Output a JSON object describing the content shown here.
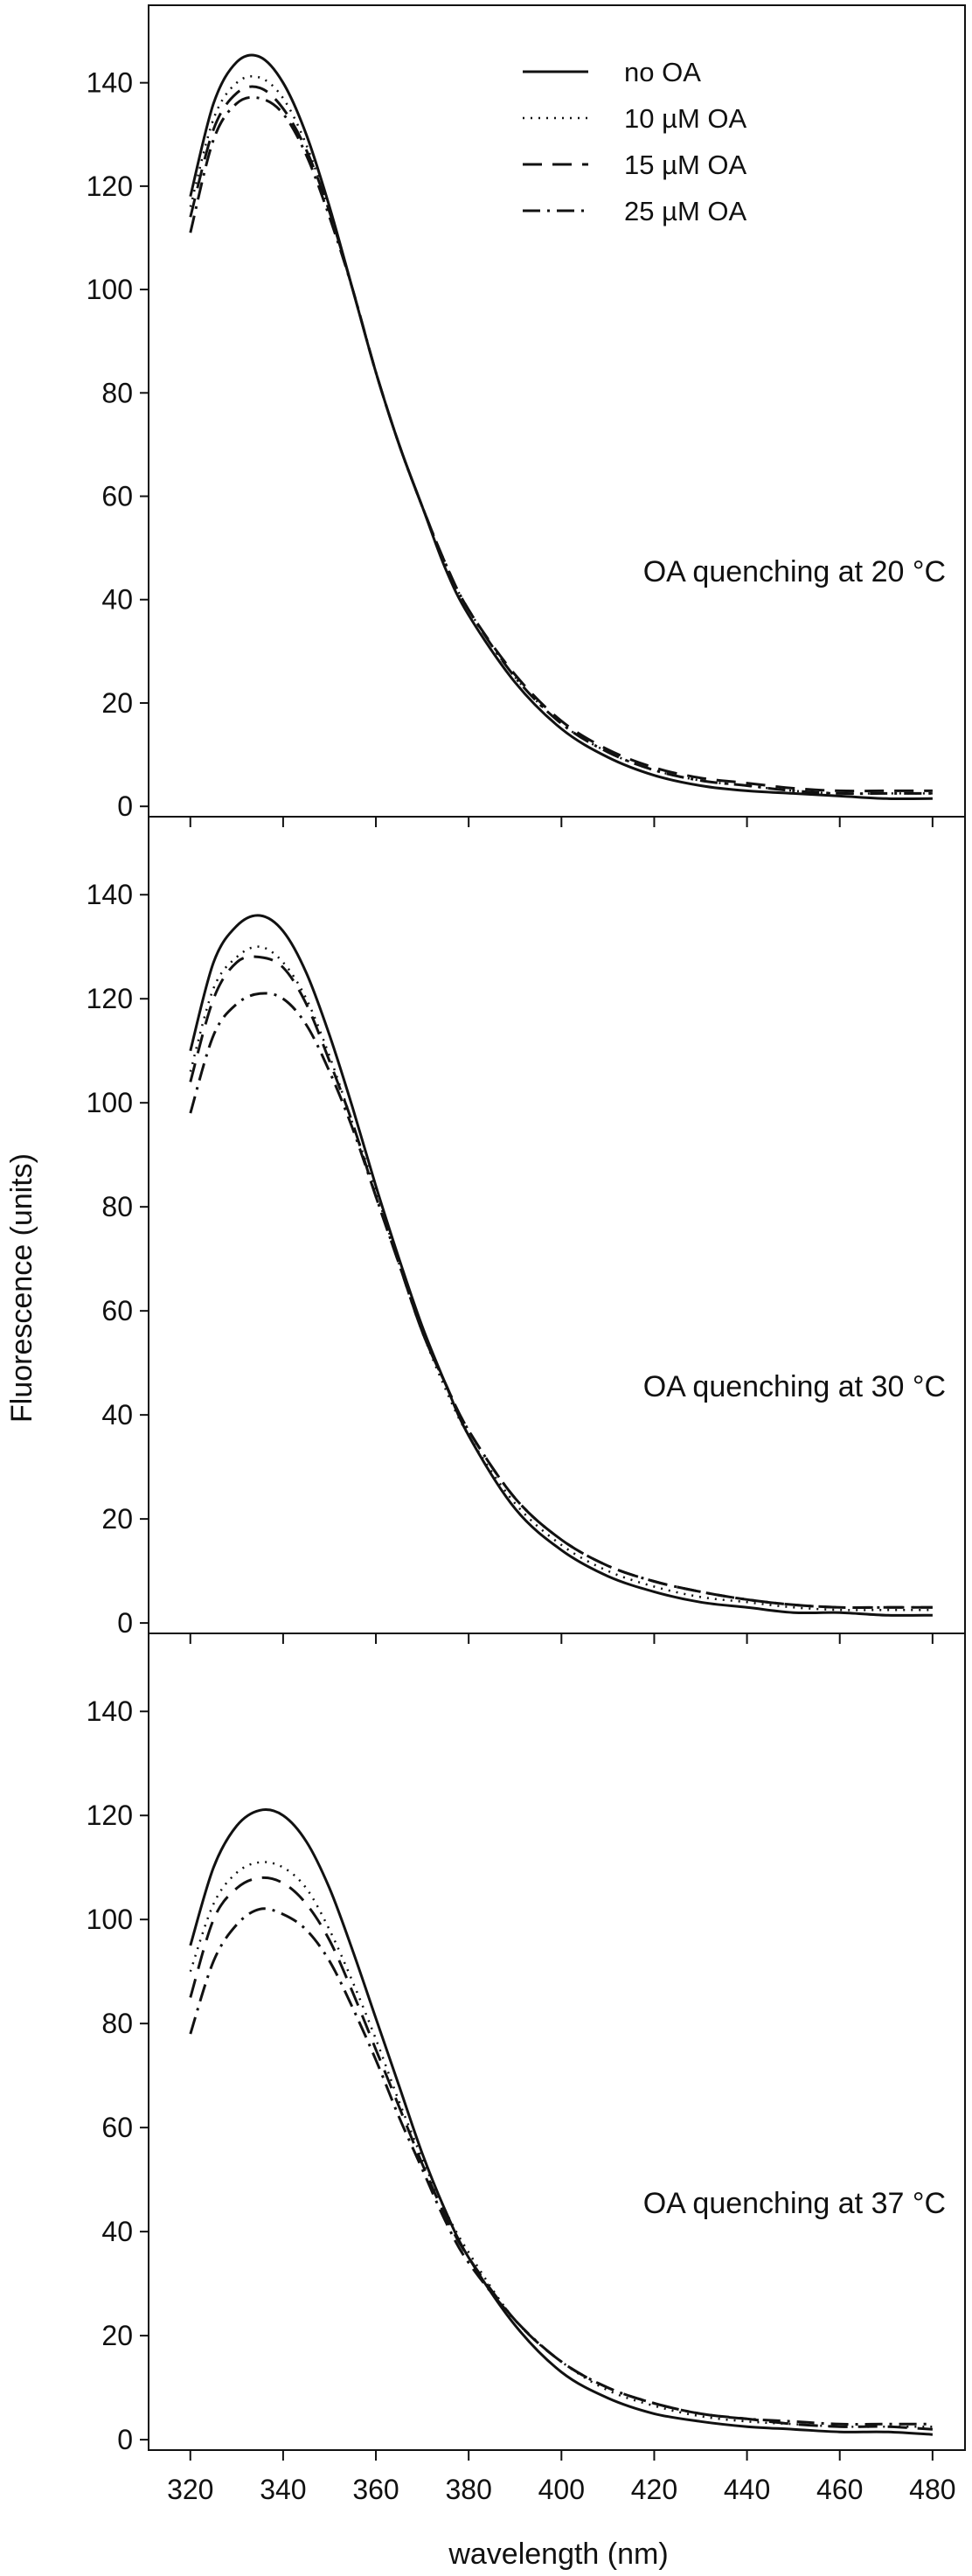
{
  "chart_data": [
    {
      "type": "line",
      "annotation": "OA quenching at 20 °C",
      "ylim": [
        -2,
        155
      ],
      "xlim": [
        311,
        487
      ],
      "yticks": [
        0,
        20,
        40,
        60,
        80,
        100,
        120,
        140
      ],
      "legend_placement": "top-center",
      "legend": [
        "no OA",
        "10 µM OA",
        "15 µM OA",
        "25 µM OA"
      ],
      "series": [
        {
          "name": "no OA",
          "style": "solid",
          "x": [
            320,
            325,
            330,
            335,
            340,
            345,
            350,
            355,
            360,
            365,
            370,
            375,
            380,
            390,
            400,
            410,
            420,
            430,
            440,
            450,
            460,
            470,
            480
          ],
          "y": [
            118,
            136,
            144,
            145,
            140,
            130,
            116,
            100,
            84,
            70,
            58,
            46,
            37,
            24,
            15,
            9.5,
            6,
            4,
            3,
            2.5,
            2,
            1.5,
            1.5
          ]
        },
        {
          "name": "10 µM OA",
          "style": "dotted",
          "x": [
            320,
            325,
            330,
            335,
            340,
            345,
            350,
            355,
            360,
            365,
            370,
            375,
            380,
            390,
            400,
            410,
            420,
            430,
            440,
            450,
            460,
            470,
            480
          ],
          "y": [
            116,
            133,
            140,
            141,
            137,
            128,
            115,
            100,
            84,
            70,
            58,
            47,
            38,
            25,
            16,
            10.5,
            7,
            5,
            4,
            3,
            2.5,
            2.5,
            2.5
          ]
        },
        {
          "name": "15 µM OA",
          "style": "dashed",
          "x": [
            320,
            325,
            330,
            335,
            340,
            345,
            350,
            355,
            360,
            365,
            370,
            375,
            380,
            390,
            400,
            410,
            420,
            430,
            440,
            450,
            460,
            470,
            480
          ],
          "y": [
            114,
            131,
            138,
            139,
            135,
            127,
            115,
            100,
            84,
            70,
            58,
            47,
            38,
            25.5,
            16.5,
            11,
            7.5,
            5.5,
            4.5,
            3.5,
            3,
            3,
            3
          ]
        },
        {
          "name": "25 µM OA",
          "style": "dashdot",
          "x": [
            320,
            325,
            330,
            335,
            340,
            345,
            350,
            355,
            360,
            365,
            370,
            375,
            380,
            390,
            400,
            410,
            420,
            430,
            440,
            450,
            460,
            470,
            480
          ],
          "y": [
            111,
            129,
            136,
            137,
            134,
            126,
            114,
            100,
            84,
            70,
            58,
            47,
            38,
            25,
            16,
            10.5,
            7,
            5,
            4,
            3,
            2.5,
            2.5,
            2.5
          ]
        }
      ]
    },
    {
      "type": "line",
      "annotation": "OA quenching at 30 °C",
      "ylim": [
        -2,
        155
      ],
      "xlim": [
        311,
        487
      ],
      "yticks": [
        0,
        20,
        40,
        60,
        80,
        100,
        120,
        140
      ],
      "series": [
        {
          "name": "no OA",
          "style": "solid",
          "x": [
            320,
            325,
            330,
            335,
            340,
            345,
            350,
            355,
            360,
            365,
            370,
            375,
            380,
            390,
            400,
            410,
            420,
            430,
            440,
            450,
            460,
            470,
            480
          ],
          "y": [
            110,
            127,
            134,
            136,
            133,
            125,
            113,
            99,
            84,
            70,
            57,
            46,
            36,
            22,
            14,
            9,
            6,
            4,
            3,
            2,
            2,
            1.5,
            1.5
          ]
        },
        {
          "name": "10 µM OA",
          "style": "dotted",
          "x": [
            320,
            325,
            330,
            335,
            340,
            345,
            350,
            355,
            360,
            365,
            370,
            375,
            380,
            390,
            400,
            410,
            420,
            430,
            440,
            450,
            460,
            470,
            480
          ],
          "y": [
            106,
            122,
            128,
            130,
            127,
            120,
            109,
            96,
            83,
            69,
            56,
            45,
            36,
            23,
            15,
            10,
            7,
            5,
            4,
            3,
            2.5,
            2.5,
            2.5
          ]
        },
        {
          "name": "15 µM OA",
          "style": "dashed",
          "x": [
            320,
            325,
            330,
            335,
            340,
            345,
            350,
            355,
            360,
            365,
            370,
            375,
            380,
            390,
            400,
            410,
            420,
            430,
            440,
            450,
            460,
            470,
            480
          ],
          "y": [
            104,
            120,
            127,
            128,
            126,
            119,
            108,
            96,
            82,
            69,
            56,
            46,
            37,
            24,
            16,
            11,
            8,
            6,
            4.5,
            3.5,
            3,
            3,
            3
          ]
        },
        {
          "name": "25 µM OA",
          "style": "dashdot",
          "x": [
            320,
            325,
            330,
            335,
            340,
            345,
            350,
            355,
            360,
            365,
            370,
            375,
            380,
            390,
            400,
            410,
            420,
            430,
            440,
            450,
            460,
            470,
            480
          ],
          "y": [
            98,
            113,
            119,
            121,
            120,
            115,
            106,
            95,
            82,
            69,
            56,
            46,
            37,
            24,
            16,
            11,
            8,
            6,
            4.5,
            3.5,
            3,
            3,
            3
          ]
        }
      ]
    },
    {
      "type": "line",
      "annotation": "OA quenching at 37 °C",
      "ylim": [
        -2,
        155
      ],
      "xlim": [
        311,
        487
      ],
      "yticks": [
        0,
        20,
        40,
        60,
        80,
        100,
        120,
        140
      ],
      "xticks": [
        320,
        340,
        360,
        380,
        400,
        420,
        440,
        460,
        480
      ],
      "xlabel": "wavelength (nm)",
      "series": [
        {
          "name": "no OA",
          "style": "solid",
          "x": [
            320,
            325,
            330,
            335,
            340,
            345,
            350,
            355,
            360,
            365,
            370,
            375,
            380,
            390,
            400,
            410,
            420,
            430,
            440,
            450,
            460,
            470,
            480
          ],
          "y": [
            95,
            110,
            118,
            121,
            120,
            115,
            106,
            94,
            81,
            68,
            55,
            44,
            35,
            22,
            13,
            8,
            5,
            3.5,
            2.5,
            2,
            1.5,
            1.5,
            1
          ]
        },
        {
          "name": "10 µM OA",
          "style": "dotted",
          "x": [
            320,
            325,
            330,
            335,
            340,
            345,
            350,
            355,
            360,
            365,
            370,
            375,
            380,
            390,
            400,
            410,
            420,
            430,
            440,
            450,
            460,
            470,
            480
          ],
          "y": [
            90,
            103,
            109,
            111,
            110,
            106,
            98,
            88,
            77,
            65,
            54,
            44,
            36,
            23,
            15,
            9.5,
            6.5,
            4.5,
            3.5,
            3,
            2.5,
            2.5,
            2.5
          ]
        },
        {
          "name": "15 µM OA",
          "style": "dashed",
          "x": [
            320,
            325,
            330,
            335,
            340,
            345,
            350,
            355,
            360,
            365,
            370,
            375,
            380,
            390,
            400,
            410,
            420,
            430,
            440,
            450,
            460,
            470,
            480
          ],
          "y": [
            85,
            100,
            106,
            108,
            107,
            103,
            96,
            86,
            75,
            64,
            53,
            43,
            35,
            23,
            15,
            10,
            7,
            5,
            4,
            3,
            2.5,
            2.5,
            2
          ]
        },
        {
          "name": "25 µM OA",
          "style": "dashdot",
          "x": [
            320,
            325,
            330,
            335,
            340,
            345,
            350,
            355,
            360,
            365,
            370,
            375,
            380,
            390,
            400,
            410,
            420,
            430,
            440,
            450,
            460,
            470,
            480
          ],
          "y": [
            78,
            92,
            99,
            102,
            101,
            98,
            92,
            83,
            73,
            62,
            52,
            42,
            34,
            23,
            15,
            10,
            7,
            5,
            4,
            3.5,
            3,
            3,
            3
          ]
        }
      ]
    }
  ],
  "shared": {
    "ylabel": "Fluorescence (units)",
    "series_color": "#111111"
  }
}
